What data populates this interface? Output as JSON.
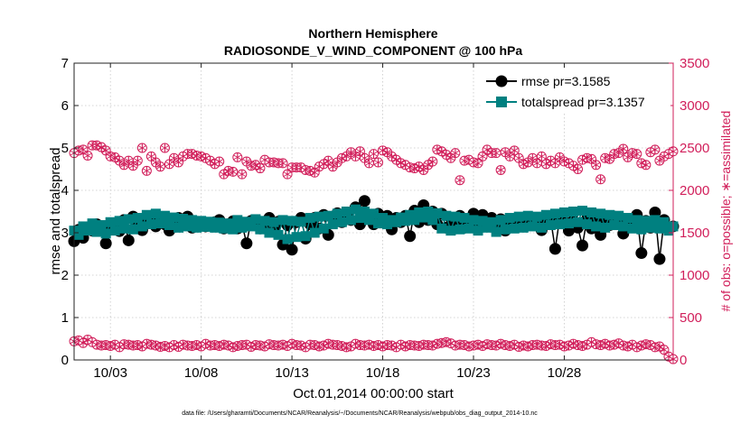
{
  "chart_data": {
    "type": "line",
    "title": "Northern Hemisphere",
    "subtitle": "RADIOSONDE_V_WIND_COMPONENT @ 100 hPa",
    "xlabel": "Oct.01,2014 00:00:00 start",
    "ylabel_left": "rmse and totalspread",
    "ylabel_right": "# of obs: o=possible; ∗=assimilated",
    "footnote": "data file: /Users/gharamti/Documents/NCAR/Reanalysis/~/Documents/NCAR/Reanalysis/webpub/obs_diag_output_2014-10.nc",
    "xlim": [
      1,
      34
    ],
    "ylim_left": [
      0,
      7
    ],
    "ylim_right": [
      0,
      3500
    ],
    "xticks": [
      3,
      8,
      13,
      18,
      23,
      28
    ],
    "xtick_labels": [
      "10/03",
      "10/08",
      "10/13",
      "10/18",
      "10/23",
      "10/28"
    ],
    "yticks_left": [
      0,
      1,
      2,
      3,
      4,
      5,
      6,
      7
    ],
    "ytick_labels_left": [
      "0",
      "1",
      "2",
      "3",
      "4",
      "5",
      "6",
      "7"
    ],
    "yticks_right": [
      0,
      500,
      1000,
      1500,
      2000,
      2500,
      3000,
      3500
    ],
    "ytick_labels_right": [
      "0",
      "500",
      "1000",
      "1500",
      "2000",
      "2500",
      "3000",
      "3500"
    ],
    "grid": "dotted",
    "legend_position": "top-right",
    "colors": {
      "rmse": "#000000",
      "totalspread": "#008080",
      "obs": "#d11e5a"
    },
    "x": [
      1.0,
      1.25,
      1.5,
      1.75,
      2.0,
      2.25,
      2.5,
      2.75,
      3.0,
      3.25,
      3.5,
      3.75,
      4.0,
      4.25,
      4.5,
      4.75,
      5.0,
      5.25,
      5.5,
      5.75,
      6.0,
      6.25,
      6.5,
      6.75,
      7.0,
      7.25,
      7.5,
      7.75,
      8.0,
      8.25,
      8.5,
      8.75,
      9.0,
      9.25,
      9.5,
      9.75,
      10.0,
      10.25,
      10.5,
      10.75,
      11.0,
      11.25,
      11.5,
      11.75,
      12.0,
      12.25,
      12.5,
      12.75,
      13.0,
      13.25,
      13.5,
      13.75,
      14.0,
      14.25,
      14.5,
      14.75,
      15.0,
      15.25,
      15.5,
      15.75,
      16.0,
      16.25,
      16.5,
      16.75,
      17.0,
      17.25,
      17.5,
      17.75,
      18.0,
      18.25,
      18.5,
      18.75,
      19.0,
      19.25,
      19.5,
      19.75,
      20.0,
      20.25,
      20.5,
      20.75,
      21.0,
      21.25,
      21.5,
      21.75,
      22.0,
      22.25,
      22.5,
      22.75,
      23.0,
      23.25,
      23.5,
      23.75,
      24.0,
      24.25,
      24.5,
      24.75,
      25.0,
      25.25,
      25.5,
      25.75,
      26.0,
      26.25,
      26.5,
      26.75,
      27.0,
      27.25,
      27.5,
      27.75,
      28.0,
      28.25,
      28.5,
      28.75,
      29.0,
      29.25,
      29.5,
      29.75,
      30.0,
      30.25,
      30.5,
      30.75,
      31.0,
      31.25,
      31.5,
      31.75,
      32.0,
      32.25,
      32.5,
      32.75,
      33.0,
      33.25,
      33.5,
      33.75,
      34.0
    ],
    "series": [
      {
        "name": "rmse",
        "legend_label": "rmse pr=3.1585",
        "axis": "left",
        "values": [
          2.8,
          3.07,
          2.88,
          3.12,
          3.05,
          3.2,
          3.14,
          2.75,
          3.1,
          3.22,
          3.04,
          3.3,
          2.82,
          3.38,
          3.26,
          3.06,
          3.28,
          3.4,
          3.15,
          3.32,
          3.2,
          3.05,
          3.2,
          3.35,
          3.18,
          3.38,
          3.12,
          3.24,
          3.2,
          3.15,
          3.22,
          3.25,
          3.3,
          3.1,
          3.2,
          3.27,
          3.1,
          3.21,
          2.75,
          3.28,
          3.18,
          3.1,
          3.22,
          3.35,
          3.05,
          3.26,
          2.72,
          3.18,
          2.6,
          3.25,
          3.35,
          2.86,
          3.2,
          3.35,
          3.1,
          3.42,
          2.95,
          3.33,
          3.46,
          3.25,
          3.43,
          3.3,
          3.6,
          3.2,
          3.75,
          3.35,
          3.2,
          3.45,
          3.28,
          3.4,
          3.08,
          3.35,
          3.25,
          3.4,
          2.92,
          3.52,
          3.25,
          3.65,
          3.3,
          3.5,
          3.2,
          3.45,
          3.12,
          3.35,
          3.22,
          3.4,
          3.12,
          3.3,
          3.45,
          3.12,
          3.42,
          3.22,
          3.35,
          3.15,
          3.32,
          3.05,
          3.25,
          3.15,
          3.3,
          3.35,
          3.2,
          3.3,
          3.22,
          3.06,
          3.25,
          3.32,
          2.62,
          3.34,
          3.25,
          3.05,
          3.28,
          3.12,
          2.7,
          3.32,
          3.1,
          3.3,
          2.95,
          3.25,
          3.18,
          3.38,
          3.25,
          2.98,
          3.28,
          3.22,
          3.42,
          2.52,
          3.28,
          3.12,
          3.48,
          2.38,
          3.3,
          3.1,
          3.15
        ]
      },
      {
        "name": "totalspread",
        "legend_label": "totalspread pr=3.1357",
        "axis": "left",
        "values": [
          3.05,
          2.95,
          3.15,
          3.05,
          3.22,
          3.02,
          3.18,
          2.98,
          3.25,
          3.05,
          3.28,
          3.1,
          3.32,
          3.08,
          3.35,
          3.15,
          3.42,
          3.2,
          3.45,
          3.22,
          3.4,
          3.18,
          3.36,
          3.12,
          3.33,
          3.15,
          3.3,
          3.12,
          3.28,
          3.14,
          3.26,
          3.12,
          3.24,
          3.1,
          3.22,
          3.08,
          3.3,
          3.12,
          3.26,
          3.15,
          3.32,
          3.08,
          3.28,
          3.0,
          3.25,
          2.95,
          3.3,
          2.85,
          3.28,
          2.9,
          3.26,
          2.92,
          3.35,
          3.0,
          3.38,
          3.1,
          3.4,
          3.2,
          3.45,
          3.25,
          3.5,
          3.3,
          3.55,
          3.35,
          3.5,
          3.3,
          3.45,
          3.22,
          3.35,
          3.2,
          3.3,
          3.25,
          3.36,
          3.28,
          3.42,
          3.3,
          3.48,
          3.36,
          3.5,
          3.3,
          3.46,
          3.1,
          3.4,
          3.05,
          3.38,
          3.08,
          3.35,
          3.1,
          3.3,
          3.05,
          3.28,
          3.12,
          3.25,
          3.02,
          3.3,
          3.08,
          3.35,
          3.1,
          3.38,
          3.12,
          3.4,
          3.15,
          3.38,
          3.12,
          3.42,
          3.18,
          3.45,
          3.2,
          3.48,
          3.22,
          3.5,
          3.25,
          3.52,
          3.2,
          3.48,
          3.15,
          3.45,
          3.12,
          3.42,
          3.18,
          3.4,
          3.15,
          3.35,
          3.1,
          3.3,
          3.08,
          3.28,
          3.12,
          3.3,
          3.1,
          3.25,
          3.05,
          3.15
        ]
      },
      {
        "name": "obs_possible",
        "axis": "right",
        "values": [
          2440,
          2470,
          2480,
          2410,
          2530,
          2530,
          2510,
          2470,
          2400,
          2390,
          2350,
          2300,
          2350,
          2290,
          2350,
          2500,
          2230,
          2400,
          2330,
          2280,
          2500,
          2310,
          2380,
          2330,
          2400,
          2430,
          2430,
          2410,
          2400,
          2380,
          2350,
          2310,
          2340,
          2190,
          2230,
          2220,
          2390,
          2190,
          2340,
          2290,
          2300,
          2260,
          2360,
          2330,
          2330,
          2320,
          2320,
          2190,
          2270,
          2270,
          2270,
          2240,
          2230,
          2210,
          2280,
          2310,
          2350,
          2280,
          2330,
          2380,
          2400,
          2450,
          2400,
          2460,
          2380,
          2320,
          2430,
          2330,
          2470,
          2450,
          2400,
          2360,
          2320,
          2300,
          2270,
          2260,
          2280,
          2240,
          2300,
          2340,
          2480,
          2460,
          2420,
          2380,
          2440,
          2120,
          2350,
          2360,
          2330,
          2320,
          2400,
          2480,
          2440,
          2440,
          2240,
          2450,
          2400,
          2470,
          2380,
          2310,
          2330,
          2380,
          2320,
          2400,
          2310,
          2350,
          2320,
          2390,
          2340,
          2320,
          2290,
          2250,
          2360,
          2380,
          2370,
          2300,
          2130,
          2380,
          2370,
          2430,
          2440,
          2490,
          2390,
          2440,
          2430,
          2320,
          2300,
          2450,
          2480,
          2350,
          2400,
          2430,
          2460
        ]
      },
      {
        "name": "obs_assimilated",
        "axis": "right",
        "values": [
          220,
          230,
          200,
          240,
          210,
          180,
          170,
          175,
          165,
          180,
          150,
          185,
          180,
          170,
          175,
          160,
          190,
          180,
          170,
          155,
          165,
          150,
          175,
          155,
          180,
          170,
          165,
          175,
          160,
          190,
          170,
          175,
          165,
          180,
          170,
          150,
          165,
          175,
          180,
          155,
          175,
          170,
          160,
          185,
          175,
          170,
          180,
          165,
          190,
          175,
          170,
          150,
          180,
          175,
          160,
          170,
          190,
          180,
          175,
          165,
          150,
          160,
          190,
          175,
          170,
          180,
          165,
          175,
          160,
          175,
          170,
          150,
          180,
          160,
          175,
          170,
          165,
          180,
          175,
          170,
          190,
          200,
          210,
          195,
          170,
          180,
          175,
          160,
          170,
          180,
          165,
          185,
          175,
          170,
          190,
          175,
          165,
          180,
          155,
          170,
          160,
          175,
          180,
          170,
          165,
          185,
          175,
          180,
          160,
          170,
          190,
          175,
          165,
          180,
          210,
          185,
          175,
          190,
          170,
          180,
          195,
          170,
          160,
          180,
          150,
          170,
          185,
          175,
          150,
          160,
          120,
          40,
          10
        ]
      }
    ]
  }
}
